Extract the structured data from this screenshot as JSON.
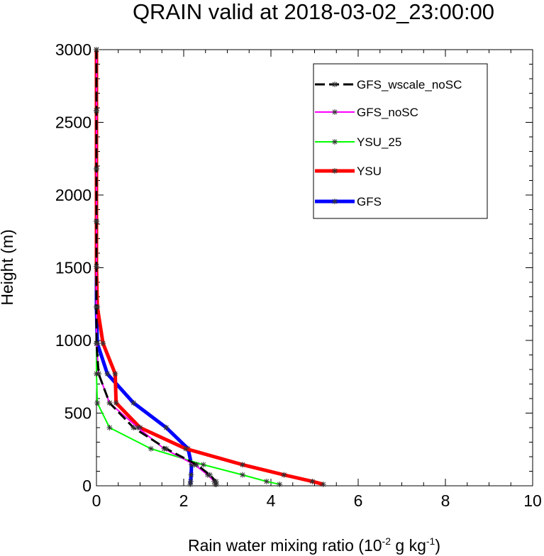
{
  "chart_data": {
    "type": "line",
    "title": "QRAIN valid at 2018-03-02_23:00:00",
    "xlabel": "Rain water mixing ratio (10",
    "xlabel_sup1": "-2",
    "xlabel_mid": " g kg",
    "xlabel_sup2": "-1",
    "xlabel_end": ")",
    "ylabel": "Height (m)",
    "xlim": [
      0,
      10
    ],
    "ylim": [
      0,
      3000
    ],
    "xticks": [
      0,
      2,
      4,
      6,
      8,
      10
    ],
    "yticks": [
      0,
      500,
      1000,
      1500,
      2000,
      2500,
      3000
    ],
    "grid": false,
    "legend_position": "top-right",
    "heights": [
      10,
      30,
      75,
      145,
      255,
      400,
      570,
      770,
      980,
      1230,
      1510,
      1820,
      2180,
      2580,
      3000
    ],
    "series": [
      {
        "name": "GFS_wscale_noSC",
        "color": "#000000",
        "dash": true,
        "width": 3,
        "values": [
          2.75,
          2.74,
          2.6,
          2.3,
          1.6,
          0.85,
          0.3,
          0.05,
          0.0,
          0.0,
          0.0,
          0.0,
          0.0,
          0.0,
          0.0
        ]
      },
      {
        "name": "GFS_noSC",
        "color": "#ff00ff",
        "dash": false,
        "width": 2,
        "values": [
          2.72,
          2.7,
          2.55,
          2.25,
          1.55,
          0.95,
          0.3,
          0.05,
          0.0,
          0.0,
          0.0,
          0.0,
          0.0,
          0.0,
          0.0
        ]
      },
      {
        "name": "YSU_25",
        "color": "#00ff00",
        "dash": false,
        "width": 2,
        "values": [
          4.2,
          3.9,
          3.35,
          2.45,
          1.25,
          0.3,
          0.02,
          0.0,
          0.0,
          0.0,
          0.0,
          0.0,
          0.0,
          0.0,
          0.0
        ]
      },
      {
        "name": "YSU",
        "color": "#ff0000",
        "dash": false,
        "width": 5,
        "values": [
          5.2,
          4.95,
          4.3,
          3.35,
          2.05,
          1.0,
          0.45,
          0.43,
          0.15,
          0.02,
          0.0,
          0.0,
          0.0,
          0.0,
          0.0
        ]
      },
      {
        "name": "GFS",
        "color": "#0000ff",
        "dash": false,
        "width": 5,
        "values": [
          2.15,
          2.16,
          2.17,
          2.18,
          2.1,
          1.6,
          0.85,
          0.25,
          0.02,
          0.0,
          0.0,
          0.0,
          0.0,
          0.0,
          0.0
        ]
      }
    ]
  }
}
